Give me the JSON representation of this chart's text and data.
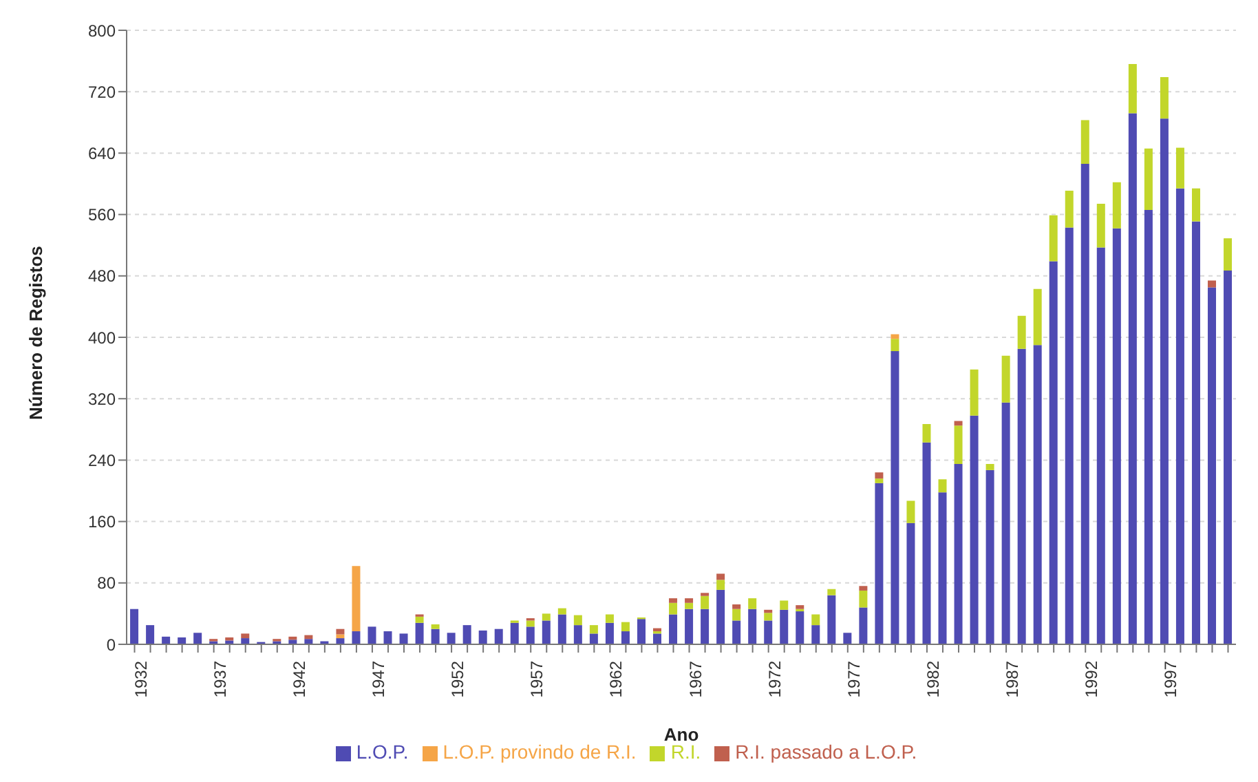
{
  "chart_data": {
    "type": "bar",
    "stacked": true,
    "xlabel": "Ano",
    "ylabel": "Número de Registos",
    "categories": [
      "1932",
      null,
      null,
      null,
      null,
      "1937",
      null,
      null,
      null,
      null,
      "1942",
      null,
      null,
      null,
      null,
      "1947",
      null,
      null,
      null,
      null,
      "1952",
      null,
      null,
      null,
      null,
      "1957",
      null,
      null,
      null,
      null,
      "1962",
      null,
      null,
      null,
      null,
      "1967",
      null,
      null,
      null,
      null,
      "1972",
      null,
      null,
      null,
      null,
      "1977",
      null,
      null,
      null,
      null,
      "1982",
      null,
      null,
      null,
      null,
      "1987",
      null,
      null,
      null,
      null,
      "1992",
      null,
      null,
      null,
      null,
      "1997",
      null,
      null,
      null,
      null
    ],
    "series": [
      {
        "name": "L.O.P.",
        "color": "#4f4bb3",
        "values": [
          46,
          25,
          10,
          9,
          15,
          4,
          5,
          8,
          3,
          4,
          6,
          7,
          4,
          8,
          17,
          23,
          17,
          14,
          28,
          20,
          15,
          25,
          18,
          20,
          28,
          23,
          31,
          39,
          25,
          14,
          28,
          17,
          33,
          14,
          39,
          46,
          46,
          71,
          31,
          46,
          31,
          45,
          43,
          25,
          64,
          15,
          48,
          210,
          382,
          158,
          263,
          198,
          235,
          298,
          227,
          315,
          385,
          390,
          499,
          543,
          626,
          517,
          542,
          692,
          566,
          685,
          594,
          551,
          465,
          487
        ]
      },
      {
        "name": "R.I.",
        "color": "#c2d62b",
        "values": [
          0,
          0,
          0,
          0,
          0,
          0,
          0,
          0,
          0,
          0,
          0,
          0,
          0,
          0,
          0,
          0,
          0,
          0,
          8,
          6,
          0,
          0,
          0,
          0,
          3,
          8,
          9,
          8,
          13,
          11,
          11,
          12,
          2,
          3,
          15,
          8,
          17,
          13,
          15,
          14,
          10,
          12,
          3,
          14,
          8,
          0,
          22,
          6,
          16,
          29,
          24,
          17,
          50,
          60,
          8,
          61,
          43,
          73,
          60,
          48,
          57,
          57,
          60,
          64,
          80,
          54,
          53,
          43,
          0,
          42
        ]
      },
      {
        "name": "L.O.P. provindo de R.I.",
        "color": "#f5a547",
        "values": [
          0,
          0,
          0,
          0,
          0,
          0,
          0,
          0,
          0,
          0,
          0,
          0,
          0,
          5,
          85,
          0,
          0,
          0,
          0,
          0,
          0,
          0,
          0,
          0,
          0,
          0,
          0,
          0,
          0,
          0,
          0,
          0,
          0,
          0,
          0,
          0,
          0,
          0,
          0,
          0,
          0,
          0,
          0,
          0,
          0,
          0,
          0,
          0,
          6,
          0,
          0,
          0,
          0,
          0,
          0,
          0,
          0,
          0,
          0,
          0,
          0,
          0,
          0,
          0,
          0,
          0,
          0,
          0,
          0,
          0
        ]
      },
      {
        "name": "R.I. passado a L.O.P.",
        "color": "#c0604e",
        "values": [
          0,
          0,
          0,
          0,
          0,
          3,
          4,
          6,
          0,
          3,
          4,
          5,
          0,
          7,
          0,
          0,
          0,
          0,
          3,
          0,
          0,
          0,
          0,
          0,
          0,
          3,
          0,
          0,
          0,
          0,
          0,
          0,
          0,
          4,
          6,
          6,
          4,
          8,
          6,
          0,
          4,
          0,
          5,
          0,
          0,
          0,
          6,
          8,
          0,
          0,
          0,
          0,
          6,
          0,
          0,
          0,
          0,
          0,
          0,
          0,
          0,
          0,
          0,
          0,
          0,
          0,
          0,
          0,
          9,
          0
        ]
      }
    ],
    "ylim": [
      0,
      800
    ],
    "yticks": [
      0,
      80,
      160,
      240,
      320,
      400,
      480,
      560,
      640,
      720,
      800
    ],
    "grid": "y",
    "legend": "bottom"
  }
}
